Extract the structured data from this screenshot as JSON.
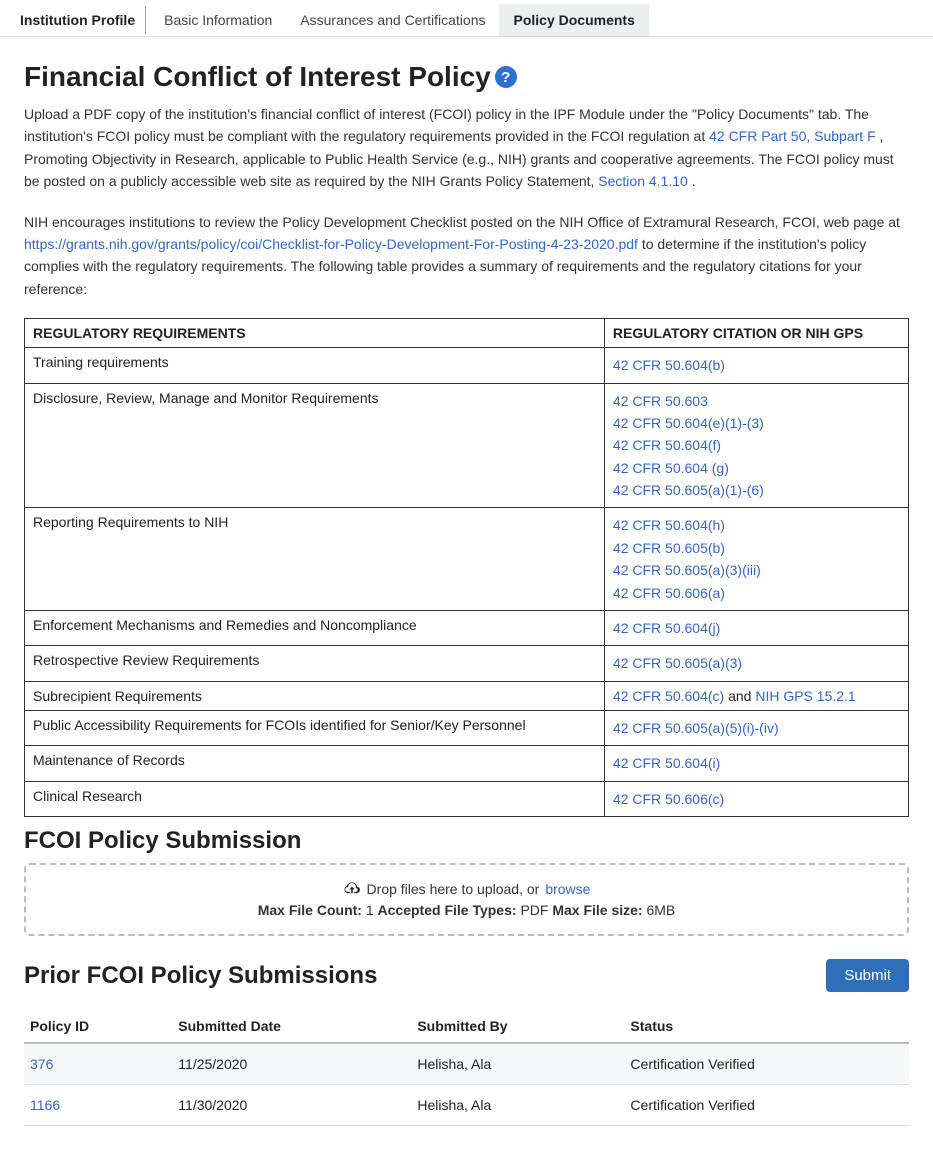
{
  "tabs": {
    "profile_title": "Institution Profile",
    "items": [
      {
        "label": "Basic Information",
        "active": false
      },
      {
        "label": "Assurances and Certifications",
        "active": false
      },
      {
        "label": "Policy Documents",
        "active": true
      }
    ]
  },
  "page_title": "Financial Conflict of Interest Policy",
  "intro": {
    "part1": "Upload a PDF copy of the institution's financial conflict of interest (FCOI) policy in the IPF Module under the \"Policy Documents\" tab. The institution's FCOI policy must be compliant with the regulatory requirements provided in the FCOI regulation at ",
    "link1": "42 CFR Part 50, Subpart F",
    "part2": ", Promoting Objectivity in Research, applicable to Public Health Service (e.g., NIH) grants and cooperative agreements. The FCOI policy must be posted on a publicly accessible web site as required by the NIH Grants Policy Statement, ",
    "link2": "Section 4.1.10",
    "part3": "."
  },
  "intro2": {
    "part1": "NIH encourages institutions to review the Policy Development Checklist posted on the NIH Office of Extramural Research, FCOI, web page at ",
    "link1": "https://grants.nih.gov/grants/policy/coi/Checklist-for-Policy-Development-For-Posting-4-23-2020.pdf",
    "part2": " to determine if the institution's policy complies with the regulatory requirements. The following table provides a summary of requirements and the regulatory citations for your reference:"
  },
  "reg_table": {
    "headers": [
      "Regulatory Requirements",
      "Regulatory Citation or NIH GPS"
    ],
    "rows": [
      {
        "req": "Training requirements",
        "cites": [
          "42 CFR 50.604(b)"
        ]
      },
      {
        "req": "Disclosure, Review, Manage and Monitor Requirements",
        "cites": [
          "42 CFR 50.603",
          "42 CFR 50.604(e)(1)-(3)",
          "42 CFR 50.604(f)",
          "42 CFR 50.604 (g)",
          "42 CFR 50.605(a)(1)-(6)"
        ]
      },
      {
        "req": "Reporting Requirements to NIH",
        "cites": [
          "42 CFR 50.604(h)",
          "42 CFR 50.605(b)",
          "42 CFR 50.605(a)(3)(iii)",
          "42 CFR 50.606(a)"
        ]
      },
      {
        "req": "Enforcement Mechanisms and Remedies and Noncompliance",
        "cites": [
          "42 CFR 50.604(j)"
        ]
      },
      {
        "req": "Retrospective Review Requirements",
        "cites": [
          "42 CFR 50.605(a)(3)"
        ]
      },
      {
        "req": "Subrecipient Requirements",
        "cites_mixed": [
          {
            "t": "link",
            "v": "42 CFR 50.604(c)"
          },
          {
            "t": "text",
            "v": " and "
          },
          {
            "t": "link",
            "v": "NIH GPS 15.2.1"
          }
        ]
      },
      {
        "req": "Public Accessibility Requirements for FCOIs identified for Senior/Key Personnel",
        "cites": [
          "42 CFR 50.605(a)(5)(i)-(iv)"
        ]
      },
      {
        "req": "Maintenance of Records",
        "cites": [
          "42 CFR 50.604(i)"
        ]
      },
      {
        "req": "Clinical Research",
        "cites": [
          "42 CFR 50.606(c)"
        ]
      }
    ]
  },
  "fcoi_submission": {
    "title": "FCOI Policy Submission",
    "drop_text": "Drop files here to upload, or ",
    "browse": "browse",
    "labels": {
      "max_count_label": "Max File Count:",
      "max_count_value": "1",
      "types_label": "Accepted File Types:",
      "types_value": "PDF",
      "max_size_label": "Max File size:",
      "max_size_value": "6MB"
    }
  },
  "prior": {
    "title": "Prior FCOI Policy Submissions",
    "submit_label": "Submit",
    "headers": [
      "Policy ID",
      "Submitted Date",
      "Submitted By",
      "Status"
    ],
    "rows": [
      {
        "id": "376",
        "date": "11/25/2020",
        "by": "Helisha, Ala",
        "status": "Certification Verified"
      },
      {
        "id": "1166",
        "date": "11/30/2020",
        "by": "Helisha, Ala",
        "status": "Certification Verified"
      }
    ]
  },
  "colors": {
    "link": "#3366cc",
    "primary": "#2f6fb9",
    "tab_bg": "#eceef0"
  }
}
